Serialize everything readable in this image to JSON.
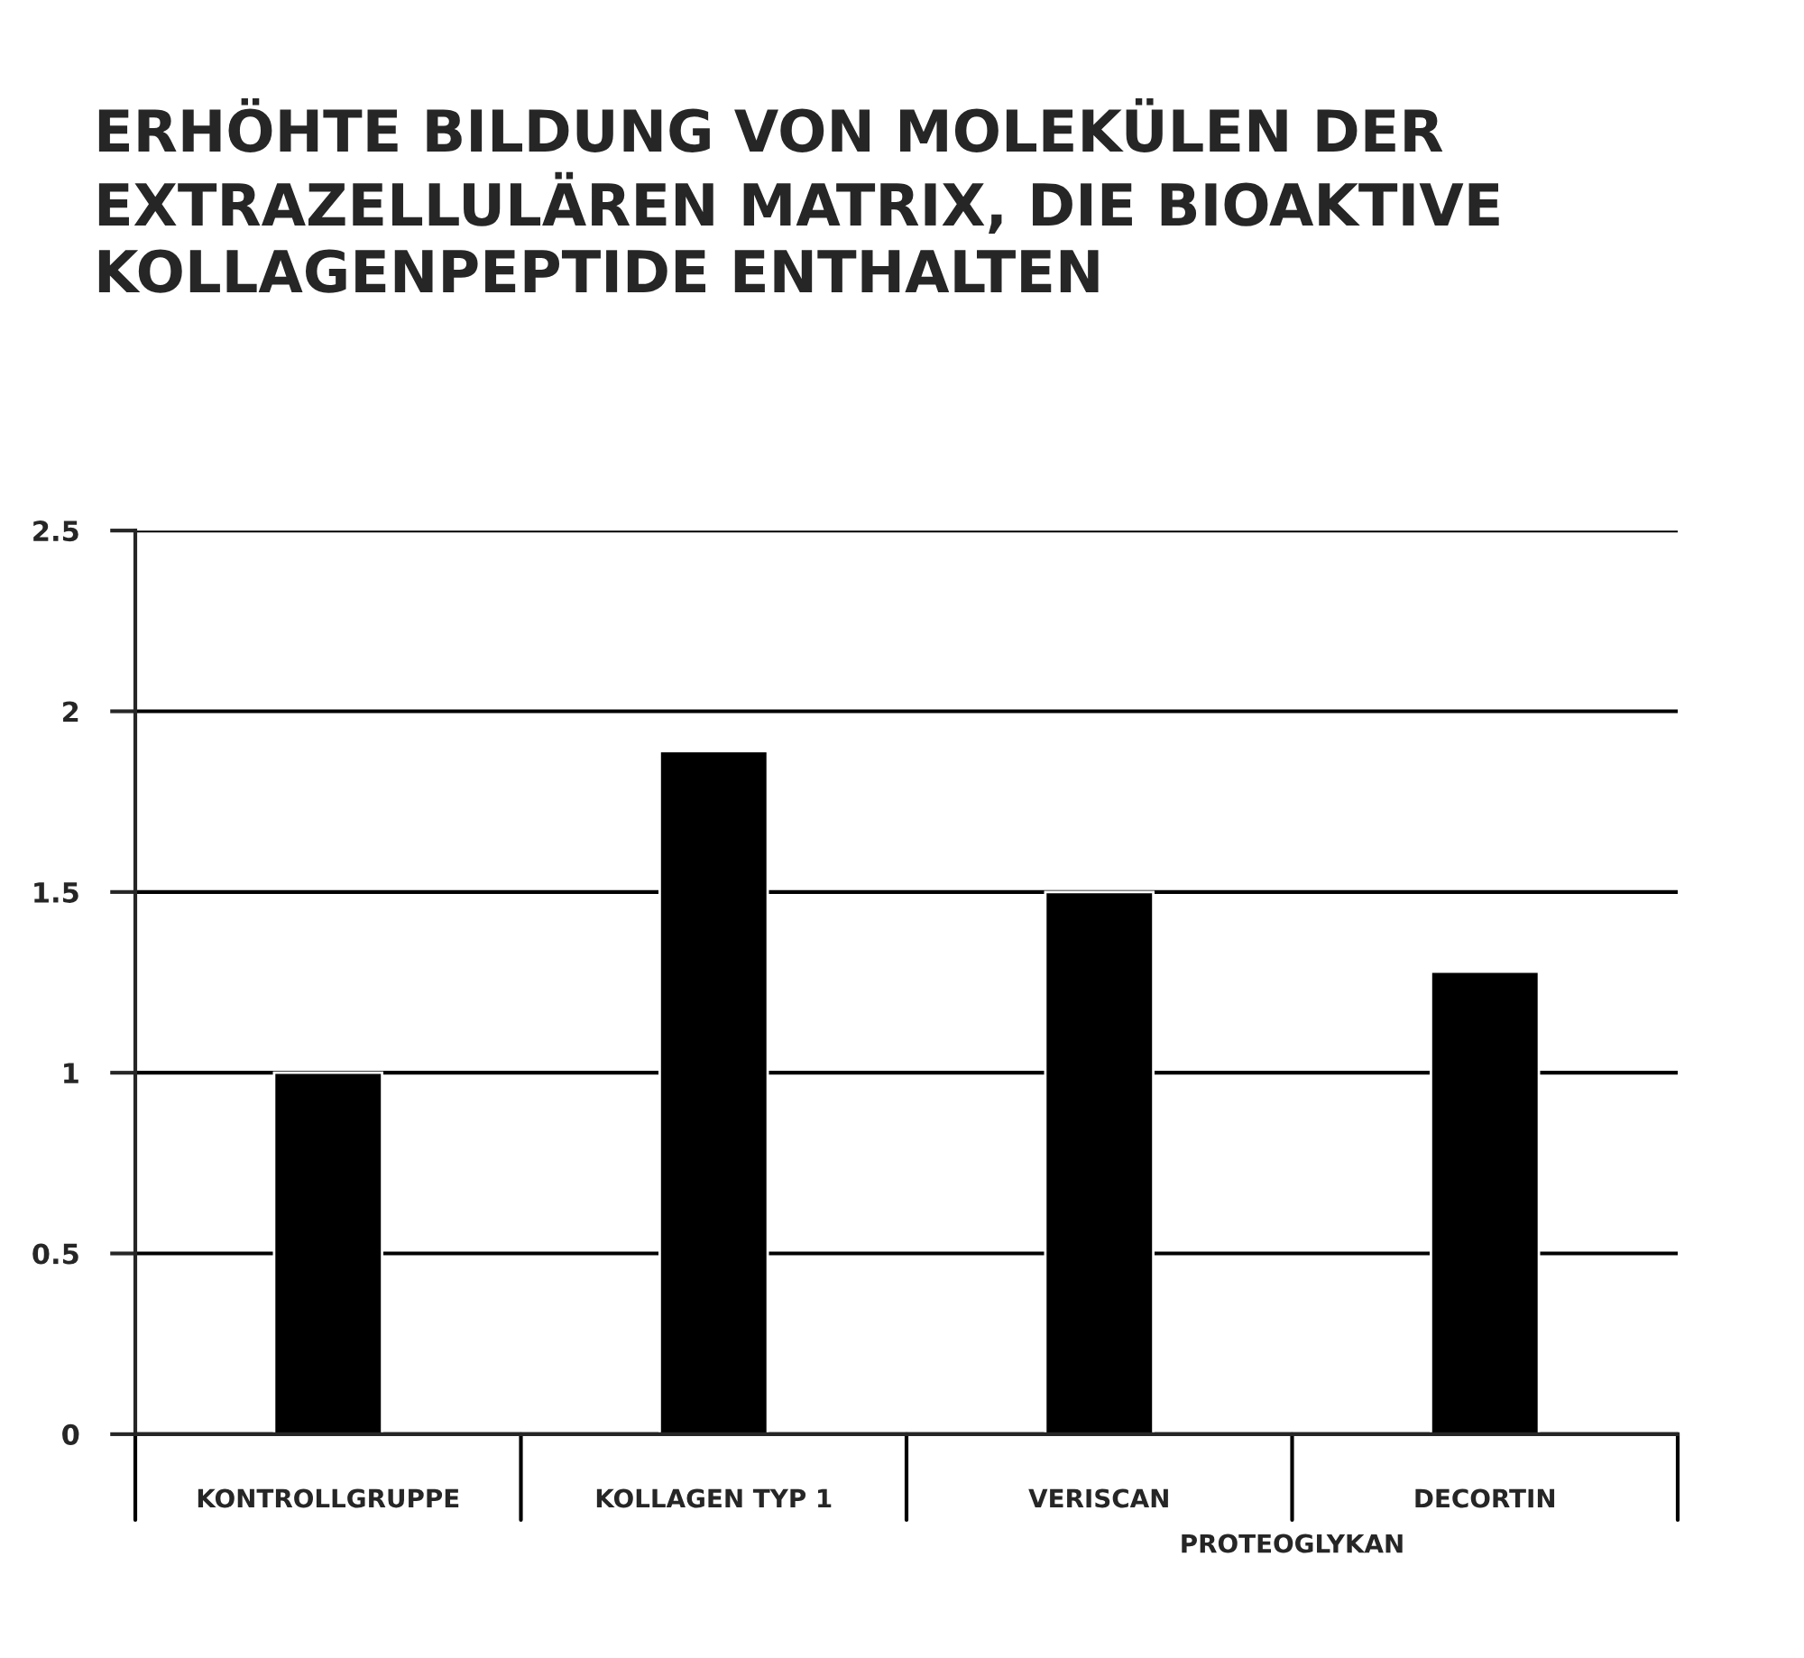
{
  "chart_data": {
    "type": "bar",
    "title": "ERHÖHTE BILDUNG VON MOLEKÜLEN DER\nEXTRAZELLULÄREN MATRIX, DIE BIOAKTIVE\nKOLLAGENPEPTIDE ENTHALTEN",
    "categories": [
      "KONTROLLGRUPPE",
      "KOLLAGEN TYP 1",
      "VERISCAN",
      "DECORTIN"
    ],
    "values": [
      1.0,
      1.89,
      1.5,
      1.28
    ],
    "color": "#000000",
    "ylim": [
      0,
      2.5
    ],
    "yticks": [
      0,
      0.5,
      1,
      1.5,
      2,
      2.5
    ],
    "grid": "y",
    "annotations": [
      "PROTEOGLYKAN"
    ]
  }
}
